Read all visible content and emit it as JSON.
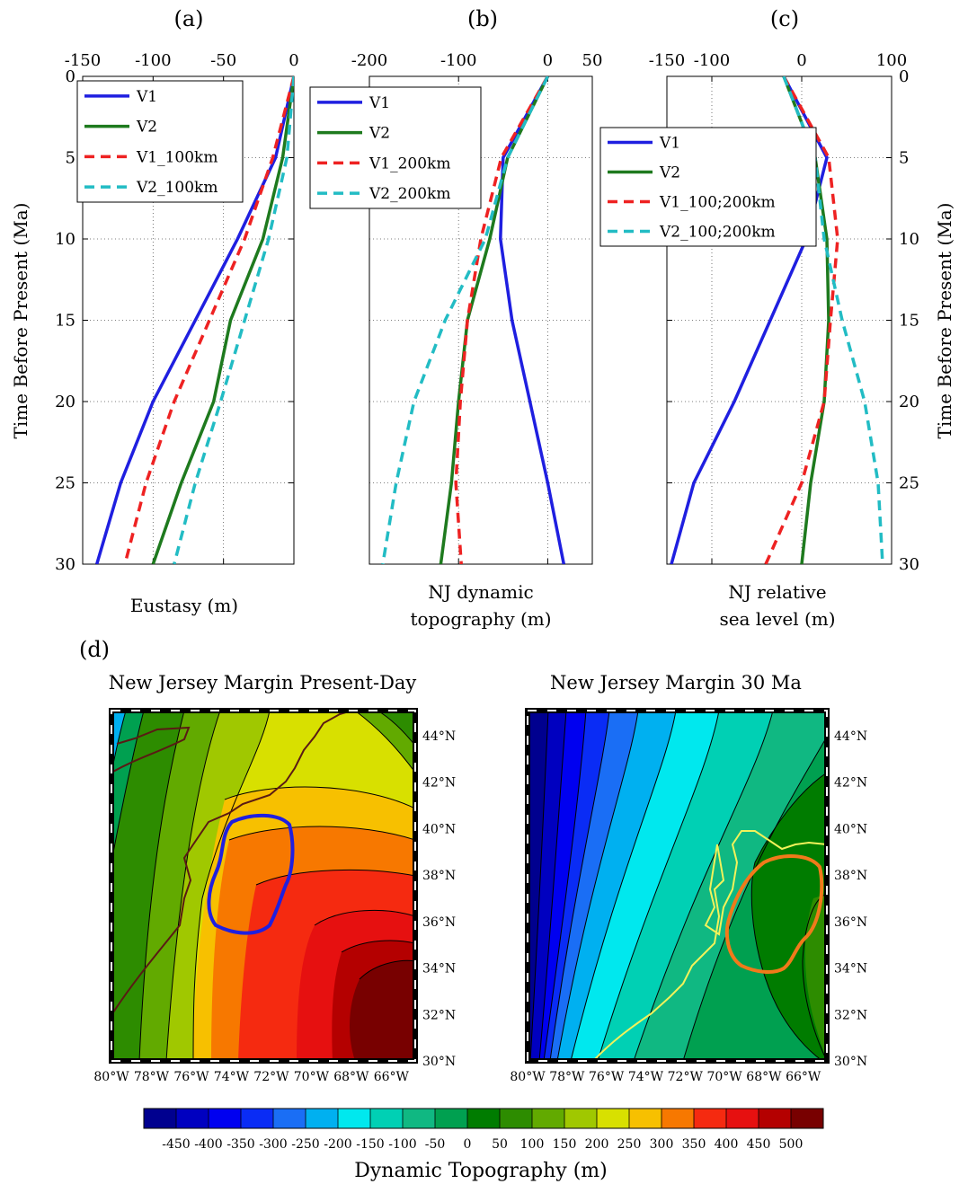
{
  "chart_data": [
    {
      "type": "line",
      "panel_label": "(a)",
      "xlabel": "Eustasy (m)",
      "ylabel": "Time Before Present (Ma)",
      "xlim": [
        -150,
        0
      ],
      "ylim": [
        0,
        30
      ],
      "x_ticks": [
        -150,
        -100,
        -50,
        0
      ],
      "y_ticks": [
        0,
        5,
        10,
        15,
        20,
        25,
        30
      ],
      "y_reversed": true,
      "grid": true,
      "legend_position": "top-left",
      "series": [
        {
          "name": "V1",
          "color": "#1f1fe0",
          "dash": "solid",
          "y": [
            0,
            5,
            10,
            15,
            20,
            25,
            30
          ],
          "x": [
            0,
            -13,
            -40,
            -70,
            -100,
            -123,
            -140
          ]
        },
        {
          "name": "V2",
          "color": "#1e7a1e",
          "dash": "solid",
          "y": [
            0,
            5,
            10,
            15,
            20,
            25,
            30
          ],
          "x": [
            0,
            -8,
            -22,
            -45,
            -57,
            -80,
            -100
          ]
        },
        {
          "name": "V1_100km",
          "color": "#ee2222",
          "dash": "dashed",
          "y": [
            0,
            5,
            10,
            15,
            20,
            25,
            30
          ],
          "x": [
            0,
            -15,
            -35,
            -60,
            -85,
            -105,
            -120
          ]
        },
        {
          "name": "V2_100km",
          "color": "#22bcc4",
          "dash": "dashed",
          "y": [
            0,
            5,
            10,
            15,
            20,
            25,
            30
          ],
          "x": [
            0,
            -5,
            -18,
            -35,
            -52,
            -70,
            -85
          ]
        }
      ]
    },
    {
      "type": "line",
      "panel_label": "(b)",
      "xlabel": "NJ dynamic topography (m)",
      "xlabel_lines": [
        "NJ dynamic",
        "topography (m)"
      ],
      "xlim": [
        -200,
        50
      ],
      "ylim": [
        0,
        30
      ],
      "x_ticks": [
        -200,
        -100,
        0,
        50
      ],
      "y_reversed": true,
      "grid": true,
      "legend_position": "top-left",
      "series": [
        {
          "name": "V1",
          "color": "#1f1fe0",
          "dash": "solid",
          "y": [
            0,
            5,
            10,
            15,
            20,
            25,
            30
          ],
          "x": [
            0,
            -50,
            -53,
            -40,
            -20,
            0,
            18
          ]
        },
        {
          "name": "V2",
          "color": "#1e7a1e",
          "dash": "solid",
          "y": [
            0,
            5,
            10,
            15,
            20,
            25,
            30
          ],
          "x": [
            0,
            -45,
            -65,
            -90,
            -100,
            -108,
            -120
          ]
        },
        {
          "name": "V1_200km",
          "color": "#ee2222",
          "dash": "dashed",
          "y": [
            0,
            5,
            10,
            15,
            20,
            25,
            30
          ],
          "x": [
            0,
            -52,
            -75,
            -90,
            -98,
            -103,
            -97
          ]
        },
        {
          "name": "V2_200km",
          "color": "#22bcc4",
          "dash": "dashed",
          "y": [
            0,
            5,
            10,
            15,
            20,
            25,
            30
          ],
          "x": [
            0,
            -45,
            -70,
            -115,
            -150,
            -170,
            -185
          ]
        }
      ]
    },
    {
      "type": "line",
      "panel_label": "(c)",
      "xlabel": "NJ relative sea level (m)",
      "xlabel_lines": [
        "NJ relative",
        "sea level (m)"
      ],
      "ylabel": "Time Before Present (Ma)",
      "xlim": [
        -150,
        100
      ],
      "ylim": [
        0,
        30
      ],
      "x_ticks": [
        -150,
        -100,
        0,
        100
      ],
      "y_ticks": [
        0,
        5,
        10,
        15,
        20,
        25,
        30
      ],
      "y_reversed": true,
      "grid": true,
      "legend_position": "top-left",
      "series": [
        {
          "name": "V1",
          "color": "#1f1fe0",
          "dash": "solid",
          "y": [
            0,
            5,
            10,
            15,
            20,
            25,
            30
          ],
          "x": [
            -20,
            28,
            5,
            -35,
            -75,
            -120,
            -145
          ]
        },
        {
          "name": "V2",
          "color": "#1e7a1e",
          "dash": "solid",
          "y": [
            0,
            5,
            10,
            15,
            20,
            25,
            30
          ],
          "x": [
            -20,
            15,
            28,
            30,
            25,
            10,
            0
          ]
        },
        {
          "name": "V1_100;200km",
          "color": "#ee2222",
          "dash": "dashed",
          "y": [
            0,
            5,
            10,
            15,
            20,
            25,
            30
          ],
          "x": [
            -20,
            30,
            40,
            32,
            25,
            0,
            -40
          ]
        },
        {
          "name": "V2_100;200km",
          "color": "#22bcc4",
          "dash": "dashed",
          "y": [
            0,
            5,
            10,
            15,
            20,
            25,
            30
          ],
          "x": [
            -20,
            15,
            25,
            45,
            70,
            85,
            90
          ]
        }
      ]
    },
    {
      "type": "heatmap",
      "panel_label": "(d)",
      "title": "New Jersey Margin Present-Day",
      "x_tick_labels": [
        "80°W",
        "78°W",
        "76°W",
        "74°W",
        "72°W",
        "70°W",
        "68°W",
        "66°W"
      ],
      "y_tick_labels": [
        "30°N",
        "32°N",
        "34°N",
        "36°N",
        "38°N",
        "40°N",
        "42°N",
        "44°N"
      ],
      "outline_color": "#1f1fe0",
      "coast_color": "#5a1a14"
    },
    {
      "type": "heatmap",
      "title": "New Jersey Margin 30 Ma",
      "x_tick_labels": [
        "80°W",
        "78°W",
        "76°W",
        "74°W",
        "72°W",
        "70°W",
        "68°W",
        "66°W"
      ],
      "y_tick_labels": [
        "30°N",
        "32°N",
        "34°N",
        "36°N",
        "38°N",
        "40°N",
        "42°N",
        "44°N"
      ],
      "outline_color": "#f07a1a",
      "coast_color": "#f2f25a"
    },
    {
      "type": "colorbar",
      "label": "Dynamic Topography (m)",
      "tick_labels": [
        "-450",
        "-400",
        "-350",
        "-300",
        "-250",
        "-200",
        "-150",
        "-100",
        "-50",
        "0",
        "50",
        "100",
        "150",
        "200",
        "250",
        "300",
        "350",
        "400",
        "450",
        "500"
      ],
      "colors": [
        "#00008f",
        "#0000c0",
        "#0000f0",
        "#0a2cf5",
        "#1a6ef5",
        "#00b0f0",
        "#00e8ee",
        "#00d0b4",
        "#10b882",
        "#00a050",
        "#007c00",
        "#2d8c00",
        "#62aa00",
        "#a0c800",
        "#d8e000",
        "#f7c000",
        "#f77800",
        "#f52a10",
        "#e61010",
        "#b40000",
        "#780000"
      ]
    }
  ]
}
